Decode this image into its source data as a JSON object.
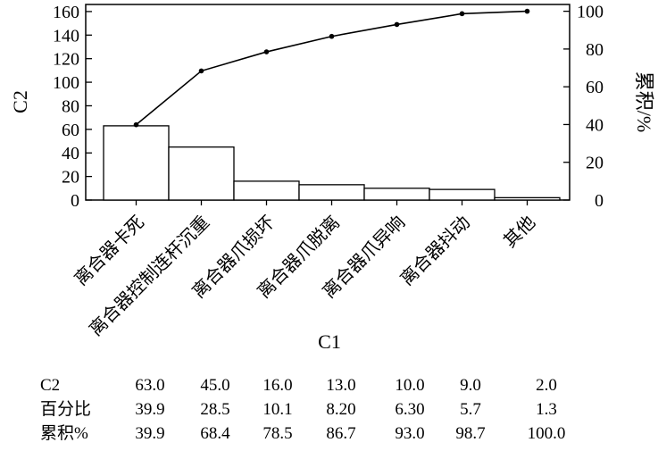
{
  "chart_data": {
    "type": "bar",
    "xlabel": "C1",
    "ylabel": "C2",
    "y2label": "累积/%",
    "ylim": [
      0,
      166
    ],
    "y2lim": [
      0,
      103.6
    ],
    "yticks": [
      "0",
      "20",
      "40",
      "60",
      "80",
      "100",
      "120",
      "140",
      "160"
    ],
    "y2ticks": [
      "0",
      "20",
      "40",
      "60",
      "80",
      "100"
    ],
    "categories": [
      "离合器卡死",
      "离合器控制连杆沉重",
      "离合器爪损坏",
      "离合器爪脱离",
      "离合器爪异响",
      "离合器抖动",
      "其他"
    ],
    "values": [
      63.0,
      45.0,
      16.0,
      13.0,
      10.0,
      9.0,
      2.0
    ],
    "cumulative": [
      39.9,
      68.4,
      78.5,
      86.7,
      93.0,
      98.7,
      100.0
    ],
    "table": {
      "rows": [
        {
          "label": "C2",
          "cells": [
            "63.0",
            "45.0",
            "16.0",
            "13.0",
            "10.0",
            "9.0",
            "2.0"
          ]
        },
        {
          "label": "百分比",
          "cells": [
            "39.9",
            "28.5",
            "10.1",
            "8.20",
            "6.30",
            "5.7",
            "1.3"
          ]
        },
        {
          "label": "累积%",
          "cells": [
            "39.9",
            "68.4",
            "78.5",
            "86.7",
            "93.0",
            "98.7",
            "100.0"
          ]
        }
      ]
    },
    "grid": false,
    "legend": "none"
  }
}
